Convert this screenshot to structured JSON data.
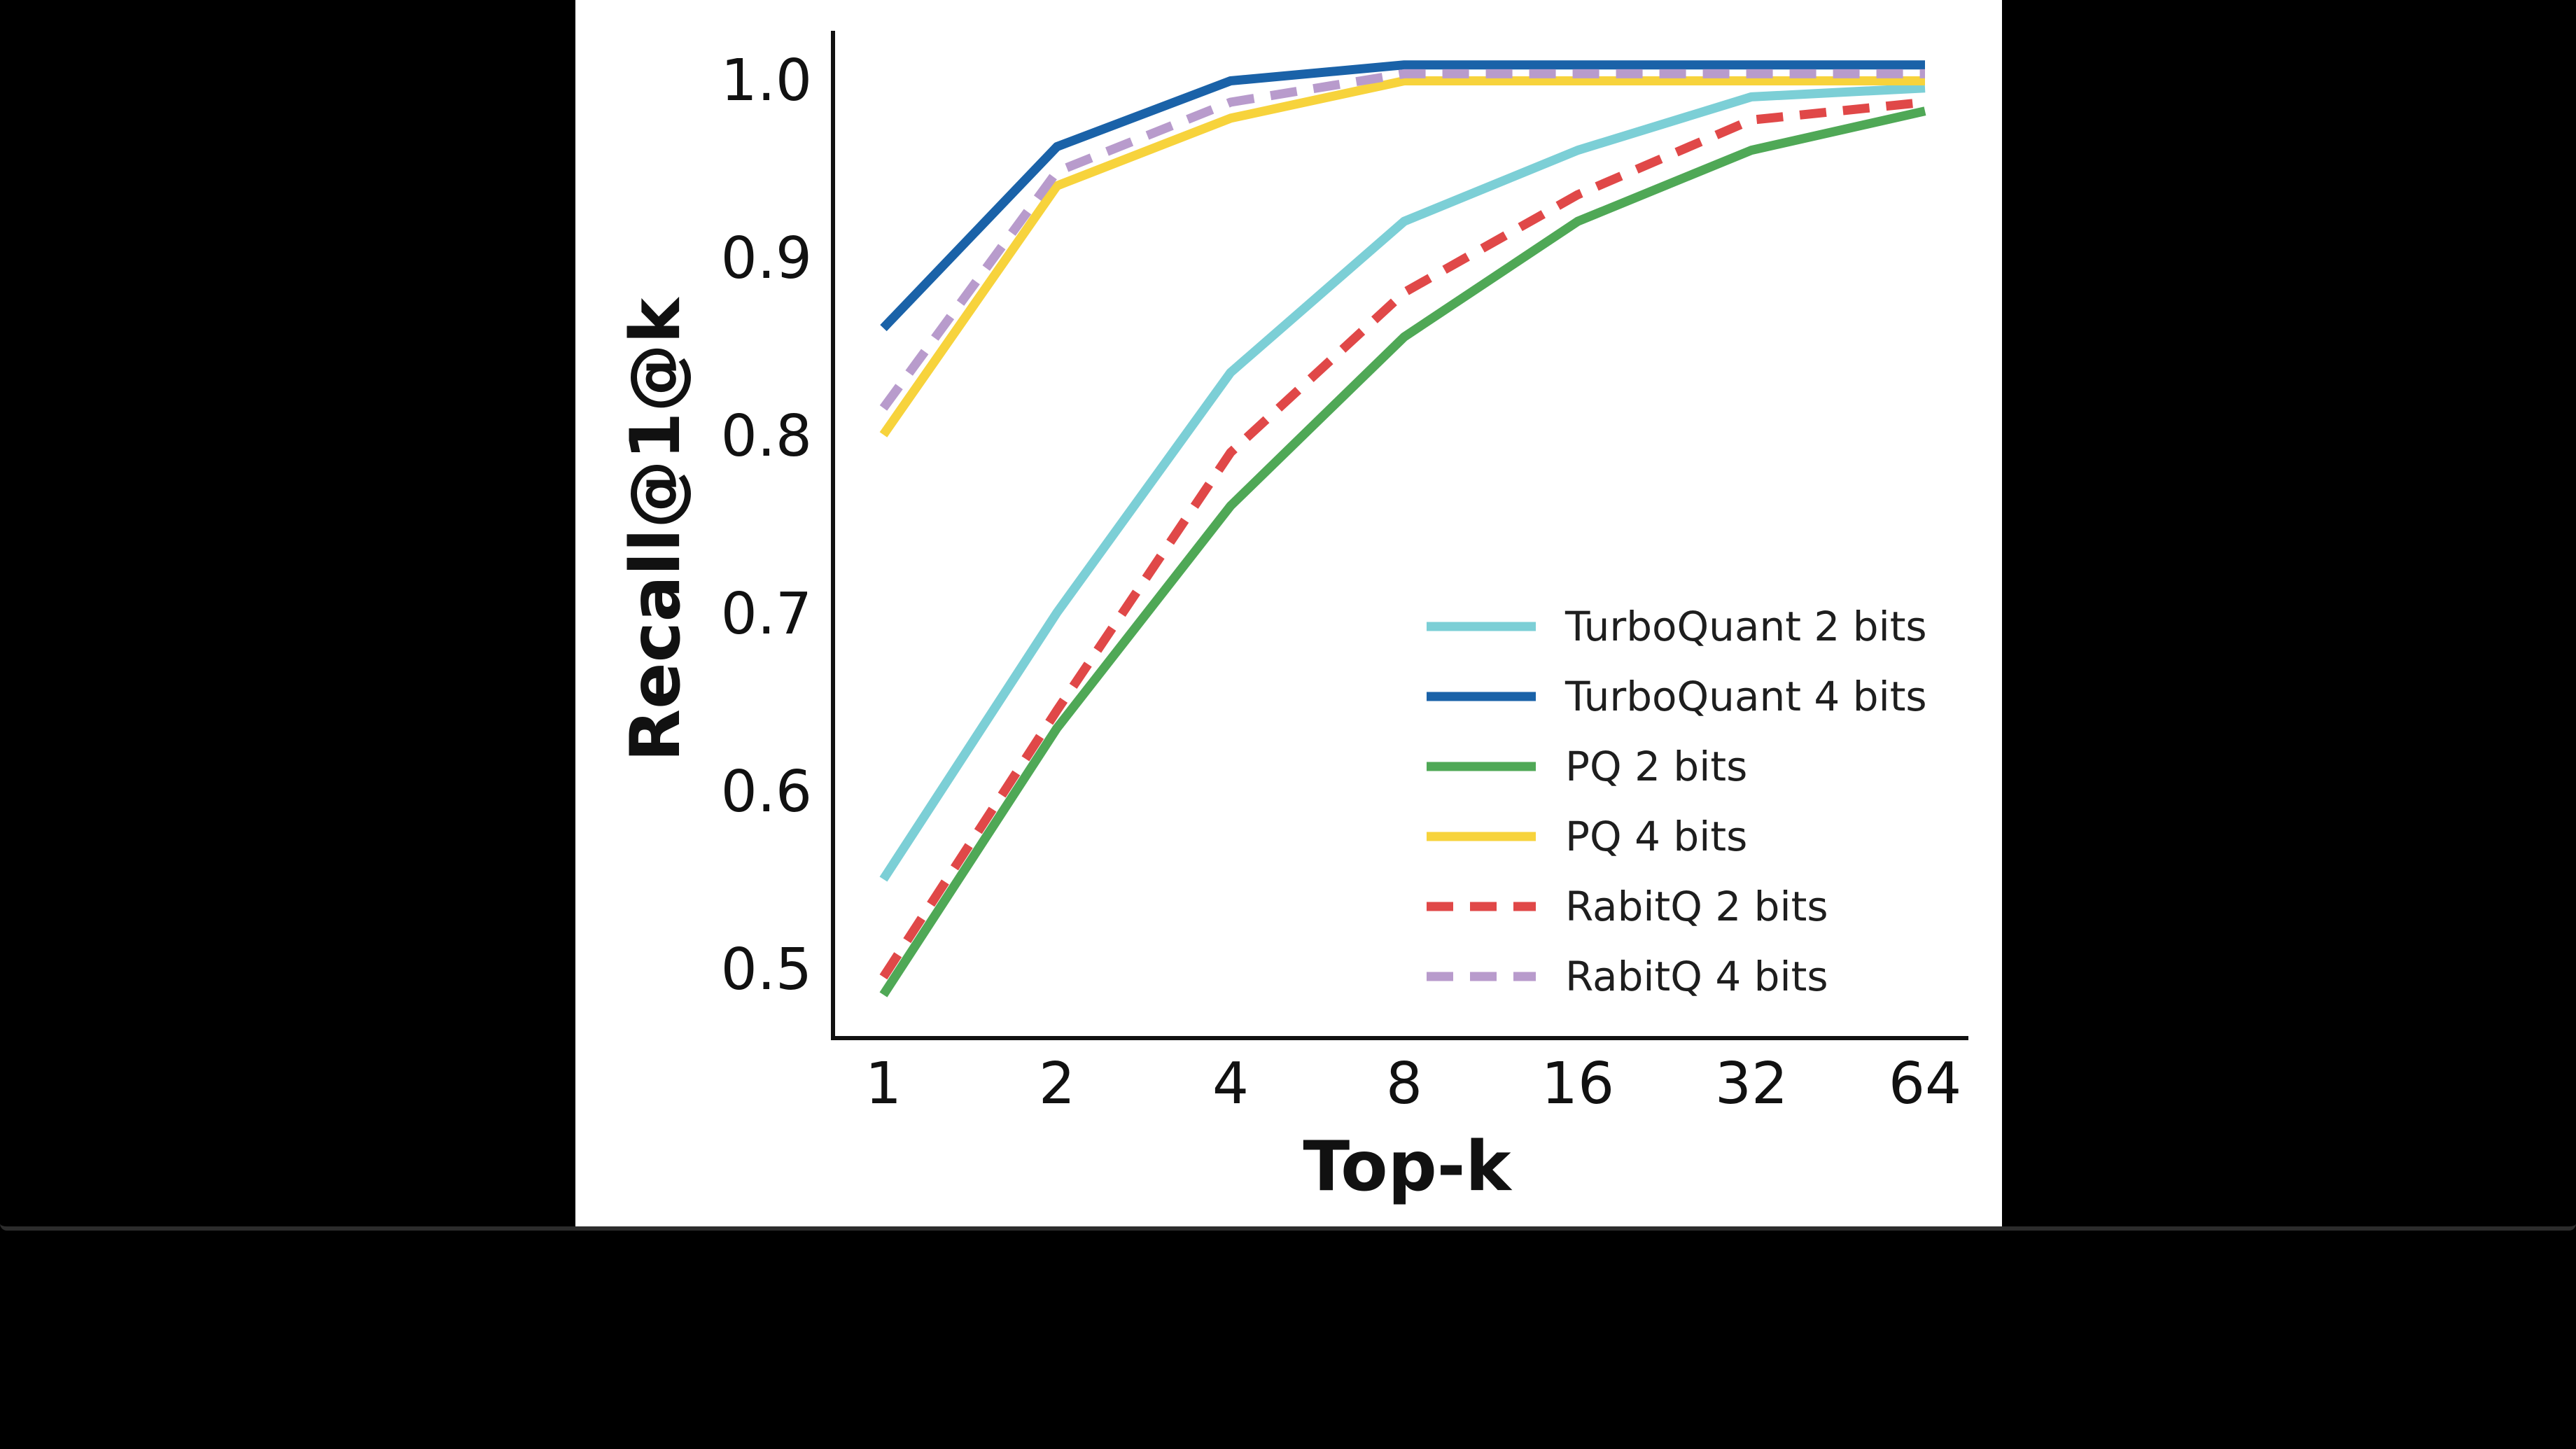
{
  "chart_data": {
    "type": "line",
    "title": "",
    "xlabel": "Top-k",
    "ylabel": "Recall@1@k",
    "categories": [
      "1",
      "2",
      "4",
      "8",
      "16",
      "32",
      "64"
    ],
    "ylim": [
      0.47,
      1.03
    ],
    "yticks": [
      0.5,
      0.6,
      0.7,
      0.8,
      0.9,
      1.0
    ],
    "ytick_labels": [
      "0.5",
      "0.6",
      "0.7",
      "0.8",
      "0.9",
      "1.0"
    ],
    "grid": false,
    "legend_position": "lower-right",
    "series": [
      {
        "name": "TurboQuant 2 bits",
        "color": "#7ccfd6",
        "dashed": false,
        "values": [
          0.55,
          0.7,
          0.835,
          0.92,
          0.96,
          0.99,
          0.995
        ]
      },
      {
        "name": "TurboQuant 4 bits",
        "color": "#1a62a8",
        "dashed": false,
        "values": [
          0.86,
          0.962,
          0.999,
          1.008,
          1.008,
          1.008,
          1.008
        ]
      },
      {
        "name": "PQ 2 bits",
        "color": "#4fa856",
        "dashed": false,
        "values": [
          0.485,
          0.635,
          0.76,
          0.855,
          0.92,
          0.96,
          0.982
        ]
      },
      {
        "name": "PQ 4 bits",
        "color": "#f7d33c",
        "dashed": false,
        "values": [
          0.8,
          0.94,
          0.978,
          0.999,
          0.999,
          0.999,
          0.999
        ]
      },
      {
        "name": "RabitQ 2 bits",
        "color": "#e04848",
        "dashed": true,
        "values": [
          0.495,
          0.645,
          0.79,
          0.88,
          0.935,
          0.977,
          0.987
        ]
      },
      {
        "name": "RabitQ 4 bits",
        "color": "#b89bcc",
        "dashed": true,
        "values": [
          0.815,
          0.948,
          0.987,
          1.003,
          1.003,
          1.003,
          1.003
        ]
      }
    ]
  }
}
